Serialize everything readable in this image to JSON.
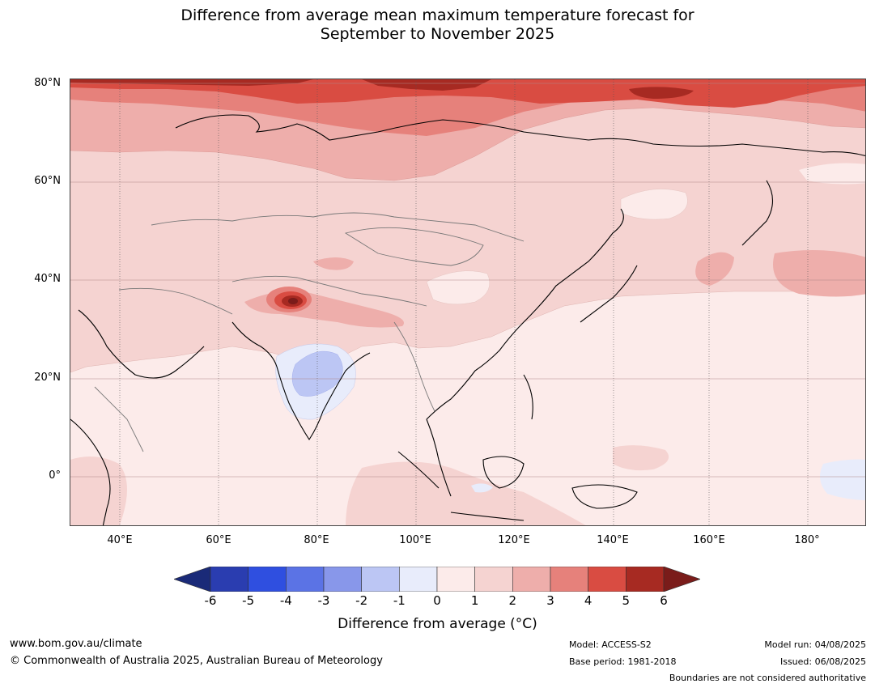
{
  "title_line1": "Difference from average mean maximum temperature forecast for",
  "title_line2": "September to November 2025",
  "map": {
    "lat_labels": [
      "80°N",
      "60°N",
      "40°N",
      "20°N",
      "0°"
    ],
    "lon_labels": [
      "40°E",
      "60°E",
      "80°E",
      "100°E",
      "120°E",
      "140°E",
      "160°E",
      "180°"
    ],
    "extent": {
      "lon": [
        30,
        191
      ],
      "lat": [
        -10,
        81
      ]
    }
  },
  "legend": {
    "ticks": [
      "-6",
      "-5",
      "-4",
      "-3",
      "-2",
      "-1",
      "0",
      "1",
      "2",
      "3",
      "4",
      "5",
      "6"
    ],
    "colors": [
      "#1a2a78",
      "#2a3db0",
      "#2f4fe0",
      "#5b73e5",
      "#8897ea",
      "#bcc6f4",
      "#e8ecfb",
      "#fcebea",
      "#f5d3d1",
      "#eeaeab",
      "#e6817b",
      "#d94c42",
      "#a72a22",
      "#7a1c1a"
    ],
    "label": "Difference from average (°C)"
  },
  "footer": {
    "url": "www.bom.gov.au/climate",
    "copyright": "© Commonwealth of Australia 2025, Australian Bureau of Meteorology",
    "model": "Model: ACCESS-S2",
    "base_period": "Base period: 1981-2018",
    "model_run": "Model run: 04/08/2025",
    "issued": "Issued: 06/08/2025",
    "disclaimer": "Boundaries are not considered authoritative"
  }
}
